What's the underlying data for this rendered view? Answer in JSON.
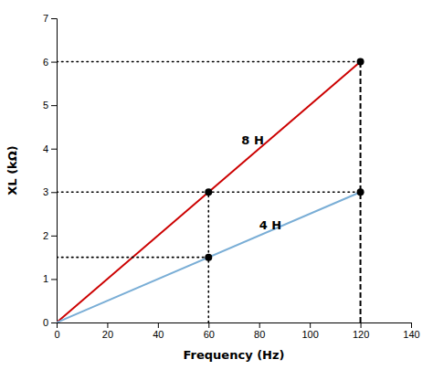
{
  "chart_data": {
    "type": "line",
    "x_label": "Frequency (Hz)",
    "y_label": "XL (kΩ)",
    "xlim": [
      0,
      140
    ],
    "ylim": [
      0,
      7
    ],
    "xticks": [
      0,
      20,
      40,
      60,
      80,
      100,
      120,
      140
    ],
    "yticks": [
      0,
      1,
      2,
      3,
      4,
      5,
      6,
      7
    ],
    "grid": false,
    "series": [
      {
        "type": "line",
        "x": [
          0,
          120
        ],
        "values": [
          0,
          6
        ],
        "color": "#cc0000",
        "line_style": "solid"
      },
      {
        "type": "line",
        "x": [
          0,
          120
        ],
        "values": [
          0,
          3
        ],
        "color": "#7aaed6",
        "line_style": "solid"
      },
      {
        "type": "line",
        "x": [
          0,
          60
        ],
        "values": [
          1.5,
          1.5
        ],
        "color": "#000000",
        "line_style": "dotted"
      },
      {
        "type": "line",
        "x": [
          0,
          120
        ],
        "values": [
          3.0,
          3.0
        ],
        "color": "#000000",
        "line_style": "dotted"
      },
      {
        "type": "line",
        "x": [
          0,
          120
        ],
        "values": [
          6.0,
          6.0
        ],
        "color": "#000000",
        "line_style": "dotted"
      },
      {
        "type": "line",
        "x": [
          60,
          60
        ],
        "values": [
          0,
          3.0
        ],
        "color": "#000000",
        "line_style": "dotted"
      },
      {
        "type": "line",
        "x": [
          120,
          120
        ],
        "values": [
          0,
          6.0
        ],
        "color": "#000000",
        "line_style": "dashed"
      },
      {
        "type": "scatter",
        "x": [
          60,
          60,
          120,
          120
        ],
        "values": [
          3.0,
          1.5,
          6.0,
          3.0
        ],
        "color": "#000000",
        "marker": "circle"
      }
    ],
    "annotations": [
      {
        "text": "8 H",
        "x": 73,
        "y": 4.1
      },
      {
        "text": "4 H",
        "x": 80,
        "y": 2.15
      }
    ]
  }
}
